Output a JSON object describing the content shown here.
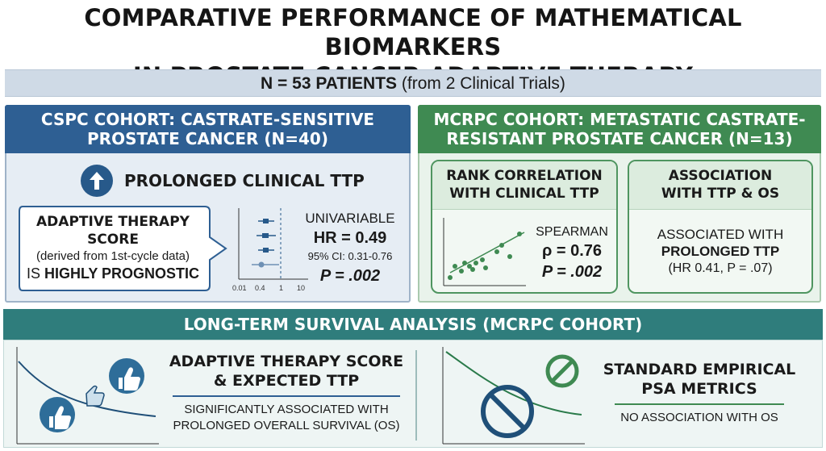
{
  "title": {
    "line1": "COMPARATIVE PERFORMANCE OF MATHEMATICAL BIOMARKERS",
    "line2": "IN PROSTATE CANCER ADAPTIVE THERAPY"
  },
  "patients": {
    "bold": "N = 53 PATIENTS",
    "rest": " (from 2 Clinical Trials)"
  },
  "cspc": {
    "header_line1": "CSPC COHORT: CASTRATE-SENSITIVE",
    "header_line2": "PROSTATE CANCER (N=40)",
    "ttp_label": "PROLONGED CLINICAL TTP",
    "score_title_line1": "ADAPTIVE THERAPY",
    "score_title_line2": "SCORE",
    "score_note": "(derived from 1st-cycle data)",
    "score_prefix": "IS ",
    "score_bold": "HIGHLY PROGNOSTIC",
    "stat_label": "UNIVARIABLE",
    "stat_hr": "HR = 0.49",
    "stat_ci": "95% CI: 0.31-0.76",
    "stat_p": "P = .002",
    "forest_ticks": [
      "0.01",
      "0.4",
      "1",
      "10"
    ],
    "colors": {
      "header": "#2e5f93",
      "marker": "#27598a"
    }
  },
  "mcrpc": {
    "header_line1": "mCRPC COHORT: METASTATIC CASTRATE-",
    "header_line2": "RESISTANT PROSTATE CANCER (N=13)",
    "left_title_line1": "RANK CORRELATION",
    "left_title_line2": "WITH CLINICAL TTP",
    "spearman_label": "SPEARMAN",
    "spearman_rho": "ρ = 0.76",
    "spearman_p": "P = .002",
    "right_title_line1": "ASSOCIATION",
    "right_title_line2": "WITH TTP & OS",
    "assoc_line1": "ASSOCIATED WITH",
    "assoc_line2": "PROLONGED TTP",
    "assoc_line3": "(HR 0.41, P = .07)",
    "colors": {
      "header": "#3f8a52"
    }
  },
  "survival": {
    "header": "LONG-TERM SURVIVAL ANALYSIS (mCRPC COHORT)",
    "left_title_line1": "ADAPTIVE THERAPY SCORE",
    "left_title_line2": "& EXPECTED TTP",
    "left_sub_line1": "SIGNIFICANTLY ASSOCIATED WITH",
    "left_sub_line2": "PROLONGED OVERALL SURVIVAL (OS)",
    "right_title_line1": "STANDARD EMPIRICAL",
    "right_title_line2": "PSA METRICS",
    "right_sub": "NO ASSOCIATION WITH OS",
    "icons": [
      "thumbs-up-icon",
      "no-symbol-icon"
    ],
    "colors": {
      "header": "#2f7d7c"
    }
  }
}
